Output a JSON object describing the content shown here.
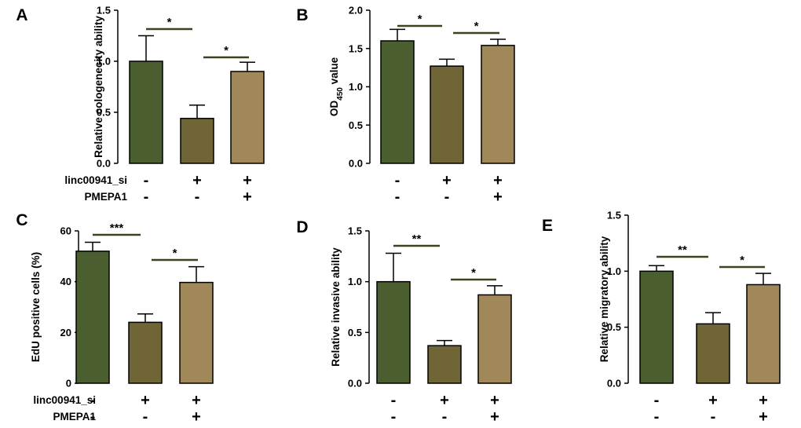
{
  "chart_data": [
    {
      "panel": "A",
      "type": "bar",
      "ylabel": "Relative cologenecity ability",
      "ylim": [
        0,
        1.5
      ],
      "yticks": [
        "0.0",
        "0.5",
        "1.0",
        "1.5"
      ],
      "values": [
        1.0,
        0.44,
        0.9
      ],
      "errors": [
        0.25,
        0.13,
        0.09
      ],
      "significance": [
        {
          "from": 0,
          "to": 1,
          "label": "*"
        },
        {
          "from": 1,
          "to": 2,
          "label": "*"
        }
      ],
      "rows": [
        {
          "label": "linc00941_si",
          "signs": [
            "-",
            "+",
            "+"
          ]
        },
        {
          "label": "PMEPA1",
          "signs": [
            "-",
            "-",
            "+"
          ]
        }
      ]
    },
    {
      "panel": "B",
      "type": "bar",
      "ylabel": "OD",
      "ylabel_sub": "450",
      "ylabel_suffix": " value",
      "ylim": [
        0,
        2.0
      ],
      "yticks": [
        "0.0",
        "0.5",
        "1.0",
        "1.5",
        "2.0"
      ],
      "values": [
        1.6,
        1.27,
        1.54
      ],
      "errors": [
        0.15,
        0.09,
        0.08
      ],
      "significance": [
        {
          "from": 0,
          "to": 1,
          "label": "*"
        },
        {
          "from": 1,
          "to": 2,
          "label": "*"
        }
      ],
      "rows": [
        {
          "label": "",
          "signs": [
            "-",
            "+",
            "+"
          ]
        },
        {
          "label": "",
          "signs": [
            "-",
            "-",
            "+"
          ]
        }
      ]
    },
    {
      "panel": "C",
      "type": "bar",
      "ylabel": "EdU positive cells (%)",
      "ylim": [
        0,
        60
      ],
      "yticks": [
        "0",
        "20",
        "40",
        "60"
      ],
      "values": [
        52,
        24,
        39.7
      ],
      "errors": [
        3.5,
        3.3,
        6.2
      ],
      "significance": [
        {
          "from": 0,
          "to": 1,
          "label": "***"
        },
        {
          "from": 1,
          "to": 2,
          "label": "*"
        }
      ],
      "rows": [
        {
          "label": "linc00941_si",
          "signs": [
            "-",
            "+",
            "+"
          ]
        },
        {
          "label": "PMEPA1",
          "signs": [
            "-",
            "-",
            "+"
          ]
        }
      ]
    },
    {
      "panel": "D",
      "type": "bar",
      "ylabel": "Relative invasive ability",
      "ylim": [
        0,
        1.5
      ],
      "yticks": [
        "0.0",
        "0.5",
        "1.0",
        "1.5"
      ],
      "values": [
        1.0,
        0.37,
        0.87
      ],
      "errors": [
        0.28,
        0.05,
        0.09
      ],
      "significance": [
        {
          "from": 0,
          "to": 1,
          "label": "**"
        },
        {
          "from": 1,
          "to": 2,
          "label": "*"
        }
      ],
      "rows": [
        {
          "label": "",
          "signs": [
            "-",
            "+",
            "+"
          ]
        },
        {
          "label": "",
          "signs": [
            "-",
            "-",
            "+"
          ]
        }
      ]
    },
    {
      "panel": "E",
      "type": "bar",
      "ylabel": "Relative migratory ability",
      "ylim": [
        0,
        1.5
      ],
      "yticks": [
        "0.0",
        "0.5",
        "1.0",
        "1.5"
      ],
      "values": [
        1.0,
        0.53,
        0.88
      ],
      "errors": [
        0.05,
        0.1,
        0.1
      ],
      "significance": [
        {
          "from": 0,
          "to": 1,
          "label": "**"
        },
        {
          "from": 1,
          "to": 2,
          "label": "*"
        }
      ],
      "rows": [
        {
          "label": "",
          "signs": [
            "-",
            "+",
            "+"
          ]
        },
        {
          "label": "",
          "signs": [
            "-",
            "-",
            "+"
          ]
        }
      ]
    }
  ],
  "colors": {
    "bars": [
      "#4a5e30",
      "#6f6537",
      "#a08859"
    ],
    "bar_stroke": "#000000",
    "sig_line": "#3a4520"
  }
}
